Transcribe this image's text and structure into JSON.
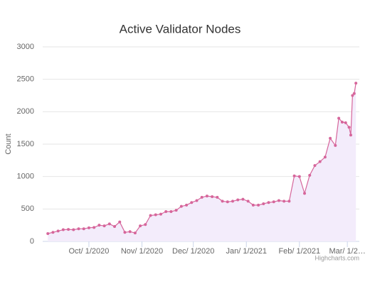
{
  "chart_data": {
    "type": "area",
    "title": "Active Validator Nodes",
    "y_label": "Count",
    "credit": "Highcharts.com",
    "color": "#d6669b",
    "fill": "#f3ecfb",
    "grid": true,
    "x": [
      "2020-09-07",
      "2020-09-10",
      "2020-09-13",
      "2020-09-16",
      "2020-09-19",
      "2020-09-22",
      "2020-09-25",
      "2020-09-28",
      "2020-10-01",
      "2020-10-04",
      "2020-10-07",
      "2020-10-10",
      "2020-10-13",
      "2020-10-16",
      "2020-10-19",
      "2020-10-22",
      "2020-10-25",
      "2020-10-28",
      "2020-10-31",
      "2020-11-03",
      "2020-11-06",
      "2020-11-09",
      "2020-11-12",
      "2020-11-15",
      "2020-11-18",
      "2020-11-21",
      "2020-11-24",
      "2020-11-27",
      "2020-11-30",
      "2020-12-03",
      "2020-12-06",
      "2020-12-09",
      "2020-12-12",
      "2020-12-15",
      "2020-12-18",
      "2020-12-21",
      "2020-12-24",
      "2020-12-27",
      "2020-12-30",
      "2021-01-02",
      "2021-01-05",
      "2021-01-08",
      "2021-01-11",
      "2021-01-14",
      "2021-01-17",
      "2021-01-20",
      "2021-01-23",
      "2021-01-26",
      "2021-01-29",
      "2021-02-01",
      "2021-02-04",
      "2021-02-07",
      "2021-02-10",
      "2021-02-13",
      "2021-02-16",
      "2021-02-19",
      "2021-02-22",
      "2021-02-24",
      "2021-02-26",
      "2021-02-28",
      "2021-03-02",
      "2021-03-03",
      "2021-03-04",
      "2021-03-05",
      "2021-03-06"
    ],
    "values": [
      120,
      140,
      160,
      180,
      185,
      180,
      195,
      195,
      210,
      215,
      250,
      240,
      270,
      230,
      300,
      140,
      150,
      130,
      240,
      260,
      400,
      410,
      420,
      460,
      460,
      480,
      540,
      560,
      600,
      630,
      680,
      700,
      690,
      680,
      620,
      610,
      620,
      640,
      650,
      620,
      560,
      560,
      580,
      600,
      610,
      630,
      620,
      620,
      1010,
      1000,
      740,
      1020,
      1170,
      1230,
      1300,
      1590,
      1480,
      1900,
      1840,
      1830,
      1760,
      1640,
      2250,
      2280,
      2440
    ],
    "xlim": [
      "2020-09-04",
      "2021-03-08"
    ],
    "xticks": [
      {
        "value": "2020-10-01",
        "label": "Oct/ 1/2020"
      },
      {
        "value": "2020-11-01",
        "label": "Nov/ 1/2020"
      },
      {
        "value": "2020-12-01",
        "label": "Dec/ 1/2020"
      },
      {
        "value": "2021-01-01",
        "label": "Jan/ 1/2021"
      },
      {
        "value": "2021-02-01",
        "label": "Feb/ 1/2021"
      },
      {
        "value": "2021-03-01",
        "label": "Mar/ 1/2…"
      }
    ],
    "ylim": [
      0,
      3000
    ],
    "yticks": [
      0,
      500,
      1000,
      1500,
      2000,
      2500,
      3000
    ]
  }
}
